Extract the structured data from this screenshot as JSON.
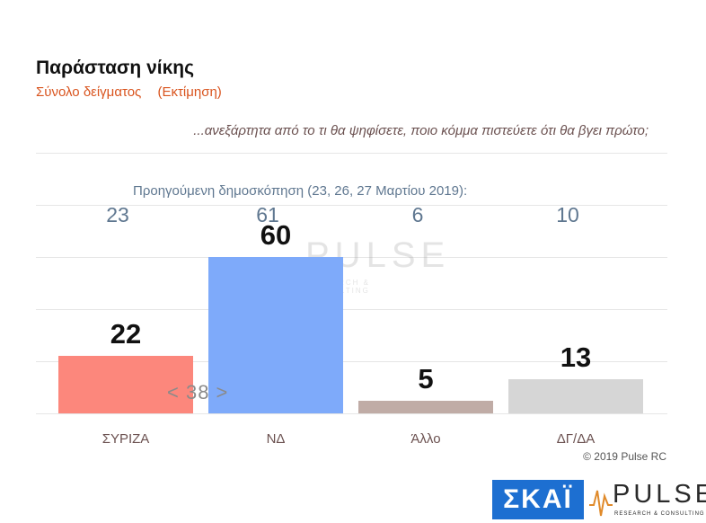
{
  "header": {
    "title": "Παράσταση νίκης",
    "subtitle_left": "Σύνολο δείγματος",
    "subtitle_right": "(Εκτίμηση)",
    "question": "...ανεξάρτητα από το τι θα ψηφίσετε, ποιο κόμμα πιστεύετε ότι θα βγει πρώτο;"
  },
  "previous_poll": {
    "label": "Προηγούμενη δημοσκόπηση (23, 26, 27 Μαρτίου 2019):",
    "values": [
      "23",
      "61",
      "6",
      "10"
    ]
  },
  "annotation": {
    "difference": "< 38 >"
  },
  "footer": {
    "copyright": "© 2019 Pulse RC"
  },
  "logos": {
    "broadcaster": "ΣΚΑΪ",
    "pulse": "PULSE",
    "pulse_sub": "RESEARCH & CONSULTING"
  },
  "chart_data": {
    "type": "bar",
    "categories": [
      "ΣΥΡΙΖΑ",
      "ΝΔ",
      "Άλλο",
      "ΔΓ/ΔΑ"
    ],
    "values": [
      22,
      60,
      5,
      13
    ],
    "value_labels": [
      "22",
      "60",
      "5",
      "13"
    ],
    "colors": [
      "#fc877c",
      "#7eaafa",
      "#c0aca6",
      "#d6d6d6"
    ],
    "ylim": [
      0,
      100
    ],
    "grid": true
  }
}
